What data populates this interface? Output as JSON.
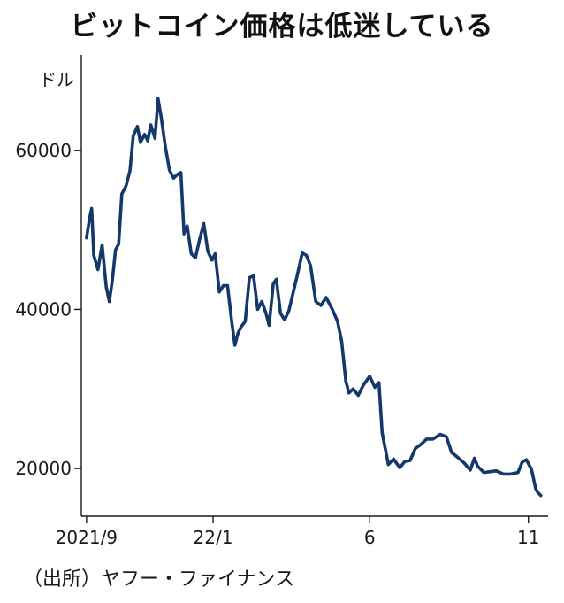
{
  "chart_data": {
    "type": "line",
    "title": "ビットコイン価格は低迷している",
    "ylabel": "ドル",
    "xlabel": "",
    "ylim": [
      14000,
      72000
    ],
    "yticks": [
      20000,
      40000,
      60000
    ],
    "xlim": [
      "2021-08-27",
      "2022-11-20"
    ],
    "xticks": [
      {
        "date": "2021-09-01",
        "label": "2021/9"
      },
      {
        "date": "2022-01-01",
        "label": "22/1"
      },
      {
        "date": "2022-06-01",
        "label": "6"
      },
      {
        "date": "2022-11-01",
        "label": "11"
      }
    ],
    "grid": false,
    "series": [
      {
        "color": "#14386b",
        "x": [
          "2021-09-01",
          "2021-09-04",
          "2021-09-06",
          "2021-09-08",
          "2021-09-12",
          "2021-09-16",
          "2021-09-20",
          "2021-09-23",
          "2021-09-26",
          "2021-09-29",
          "2021-10-02",
          "2021-10-05",
          "2021-10-09",
          "2021-10-13",
          "2021-10-16",
          "2021-10-20",
          "2021-10-23",
          "2021-10-27",
          "2021-10-30",
          "2021-11-02",
          "2021-11-06",
          "2021-11-09",
          "2021-11-12",
          "2021-11-16",
          "2021-11-20",
          "2021-11-24",
          "2021-11-28",
          "2021-12-01",
          "2021-12-04",
          "2021-12-07",
          "2021-12-11",
          "2021-12-15",
          "2021-12-19",
          "2021-12-23",
          "2021-12-27",
          "2021-12-31",
          "2022-01-03",
          "2022-01-07",
          "2022-01-11",
          "2022-01-15",
          "2022-01-19",
          "2022-01-22",
          "2022-01-25",
          "2022-01-28",
          "2022-02-01",
          "2022-02-05",
          "2022-02-09",
          "2022-02-13",
          "2022-02-17",
          "2022-02-21",
          "2022-02-24",
          "2022-02-28",
          "2022-03-03",
          "2022-03-07",
          "2022-03-11",
          "2022-03-15",
          "2022-03-19",
          "2022-03-23",
          "2022-03-28",
          "2022-04-01",
          "2022-04-05",
          "2022-04-10",
          "2022-04-15",
          "2022-04-20",
          "2022-04-26",
          "2022-05-01",
          "2022-05-05",
          "2022-05-09",
          "2022-05-12",
          "2022-05-16",
          "2022-05-21",
          "2022-05-26",
          "2022-06-01",
          "2022-06-06",
          "2022-06-10",
          "2022-06-13",
          "2022-06-16",
          "2022-06-19",
          "2022-06-24",
          "2022-06-30",
          "2022-07-05",
          "2022-07-10",
          "2022-07-15",
          "2022-07-20",
          "2022-07-26",
          "2022-08-01",
          "2022-08-08",
          "2022-08-14",
          "2022-08-19",
          "2022-08-24",
          "2022-08-31",
          "2022-09-06",
          "2022-09-10",
          "2022-09-13",
          "2022-09-19",
          "2022-09-25",
          "2022-10-01",
          "2022-10-08",
          "2022-10-15",
          "2022-10-22",
          "2022-10-26",
          "2022-10-30",
          "2022-11-04",
          "2022-11-08",
          "2022-11-10",
          "2022-11-13"
        ],
        "y": [
          49000,
          51500,
          52700,
          46800,
          45000,
          48100,
          42800,
          41000,
          43800,
          47500,
          48200,
          54500,
          55500,
          57500,
          61800,
          63000,
          61000,
          62000,
          61200,
          63200,
          61500,
          66500,
          64200,
          60500,
          57500,
          56500,
          57000,
          57200,
          49500,
          50500,
          47000,
          46500,
          48800,
          50800,
          47300,
          46200,
          47000,
          42200,
          43000,
          43000,
          38500,
          35500,
          37000,
          37800,
          38500,
          44000,
          44200,
          40000,
          41000,
          39500,
          38000,
          43200,
          43800,
          39500,
          38700,
          39800,
          42000,
          44200,
          47100,
          46800,
          45500,
          41000,
          40500,
          41500,
          40000,
          38500,
          36000,
          31000,
          29500,
          30000,
          29200,
          30500,
          31600,
          30200,
          30800,
          24500,
          22500,
          20500,
          21200,
          20100,
          20900,
          21000,
          22500,
          23000,
          23700,
          23700,
          24300,
          24000,
          22000,
          21500,
          20700,
          19800,
          21300,
          20300,
          19500,
          19600,
          19700,
          19300,
          19300,
          19500,
          20800,
          21100,
          19900,
          17500,
          17000,
          16600
        ]
      }
    ]
  },
  "source_note": "（出所）ヤフー・ファイナンス"
}
